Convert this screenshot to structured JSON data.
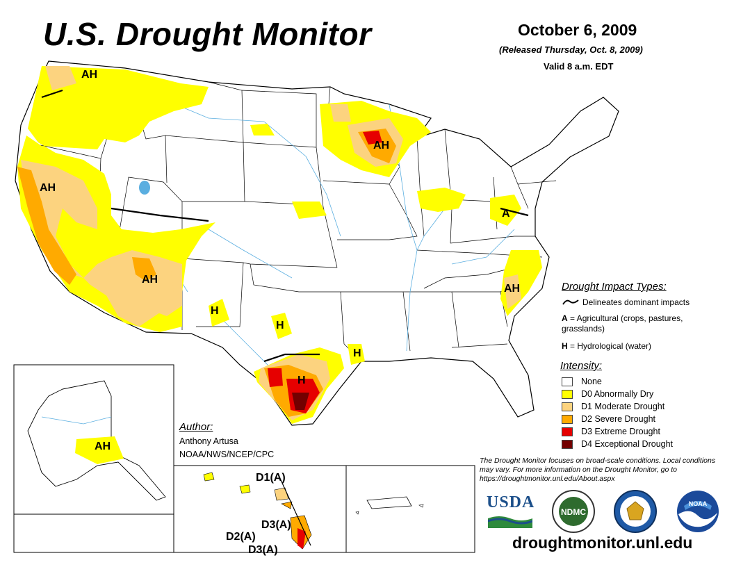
{
  "header": {
    "title": "U.S. Drought Monitor",
    "date": "October 6, 2009",
    "released": "(Released Thursday, Oct. 8, 2009)",
    "valid": "Valid 8 a.m. EDT"
  },
  "map_labels": {
    "pacific_nw": "AH",
    "california": "AH",
    "arizona": "AH",
    "new_mexico": "H",
    "wisconsin": "AH",
    "virginia": "A",
    "carolinas": "AH",
    "central_texas": "H",
    "south_texas": "H",
    "east_texas": "H",
    "alaska": "AH",
    "hawaii_1": "D1(A)",
    "hawaii_2": "D3(A)",
    "hawaii_3": "D2(A)",
    "hawaii_4": "D3(A)"
  },
  "impact_types": {
    "title": "Drought Impact Types:",
    "line_label": "Delineates dominant impacts",
    "a_key": "A",
    "a_text": " = Agricultural (crops, pastures, grasslands)",
    "h_key": "H",
    "h_text": " = Hydrological (water)"
  },
  "intensity": {
    "title": "Intensity:",
    "levels": [
      {
        "label": "None",
        "color": "#ffffff"
      },
      {
        "label": "D0 Abnormally Dry",
        "color": "#ffff00"
      },
      {
        "label": "D1 Moderate Drought",
        "color": "#fcd37f"
      },
      {
        "label": "D2 Severe Drought",
        "color": "#ffaa00"
      },
      {
        "label": "D3 Extreme Drought",
        "color": "#e60000"
      },
      {
        "label": "D4 Exceptional Drought",
        "color": "#730000"
      }
    ]
  },
  "author": {
    "title": "Author:",
    "name": "Anthony Artusa",
    "org": "NOAA/NWS/NCEP/CPC"
  },
  "disclaimer": "The Drought Monitor focuses on broad-scale conditions. Local conditions may vary. For more information on the Drought Monitor, go to https://droughtmonitor.unl.edu/About.aspx",
  "logos": {
    "usda": "USDA",
    "ndmc": "NDMC",
    "noaa": "NOAA"
  },
  "website": "droughtmonitor.unl.edu"
}
